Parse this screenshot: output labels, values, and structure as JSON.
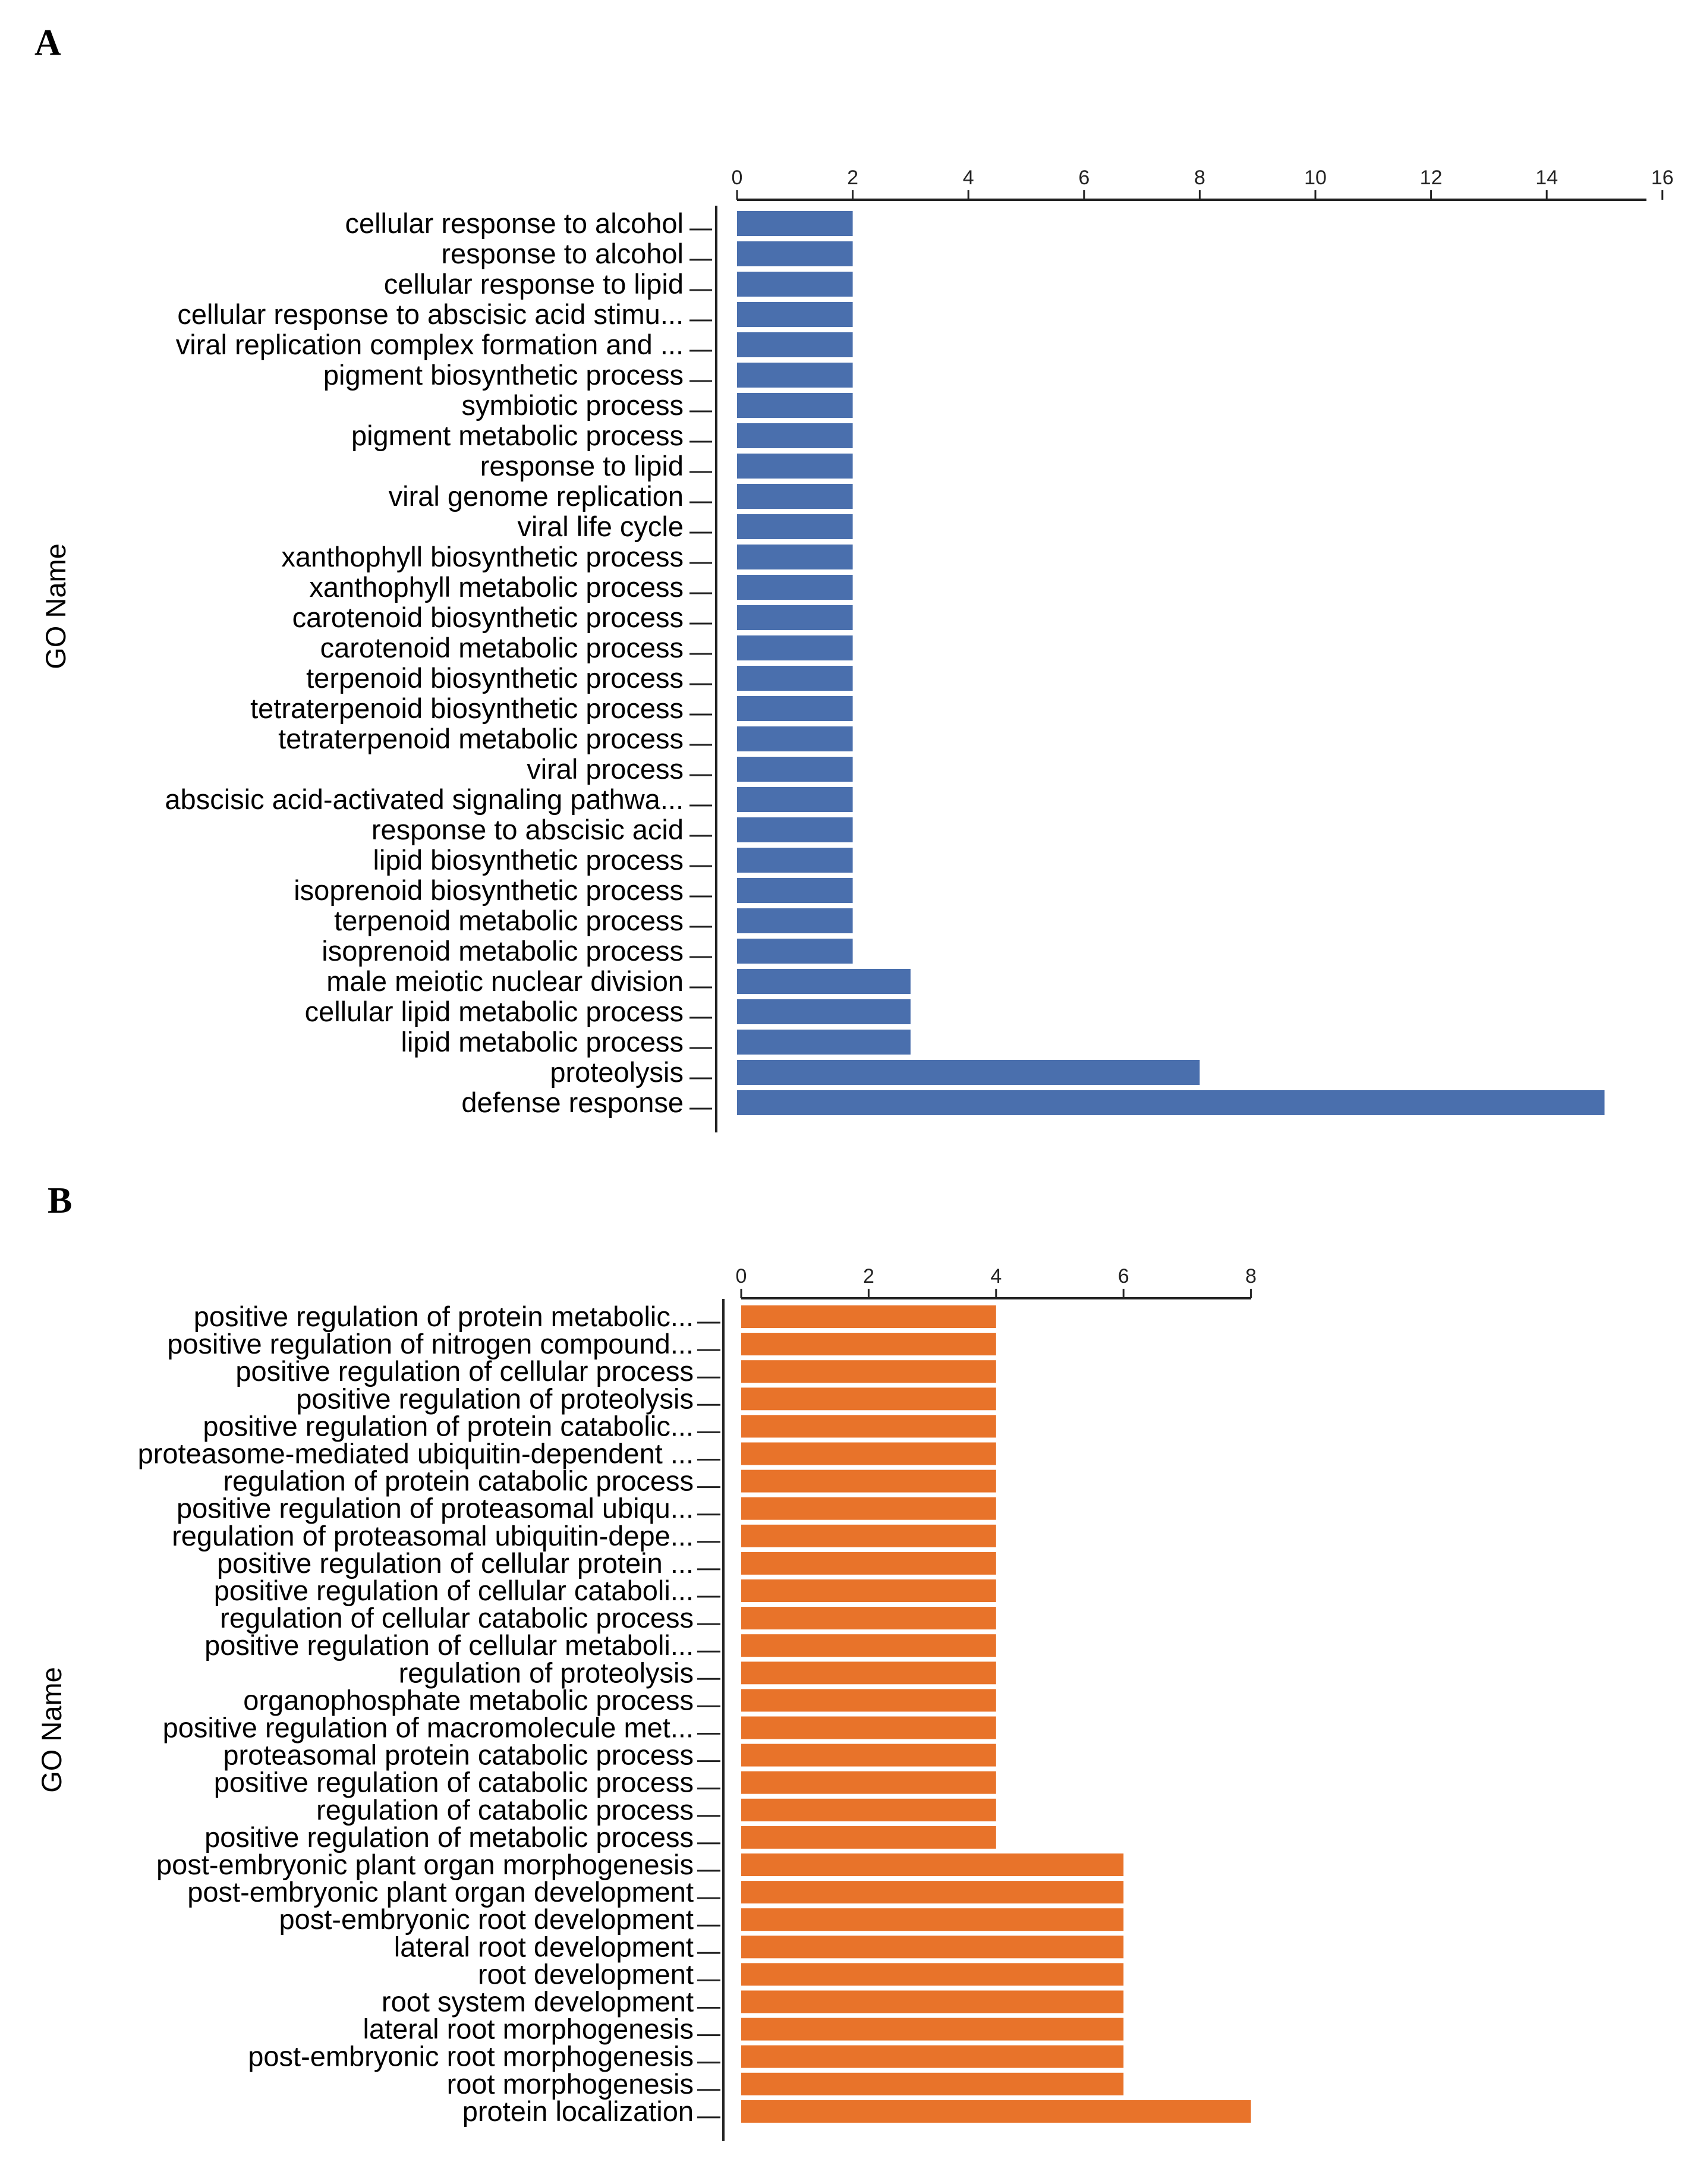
{
  "chart_data": [
    {
      "panel": "A",
      "type": "bar",
      "orientation": "horizontal",
      "ylabel": "GO Name",
      "xlim": [
        0,
        16
      ],
      "x_ticks": [
        0,
        2,
        4,
        6,
        8,
        10,
        12,
        14,
        16
      ],
      "color": "#4a6fad",
      "categories": [
        "cellular response to alcohol",
        "response to alcohol",
        "cellular response to lipid",
        "cellular response to abscisic acid stimu...",
        "viral replication complex formation and ...",
        "pigment biosynthetic process",
        "symbiotic process",
        "pigment metabolic process",
        "response to lipid",
        "viral genome replication",
        "viral life cycle",
        "xanthophyll biosynthetic process",
        "xanthophyll metabolic process",
        "carotenoid biosynthetic process",
        "carotenoid metabolic process",
        "terpenoid biosynthetic process",
        "tetraterpenoid biosynthetic process",
        "tetraterpenoid metabolic process",
        "viral process",
        "abscisic acid-activated signaling pathwa...",
        "response to abscisic acid",
        "lipid biosynthetic process",
        "isoprenoid biosynthetic process",
        "terpenoid metabolic process",
        "isoprenoid metabolic process",
        "male meiotic nuclear division",
        "cellular lipid metabolic process",
        "lipid metabolic process",
        "proteolysis",
        "defense response"
      ],
      "values": [
        2,
        2,
        2,
        2,
        2,
        2,
        2,
        2,
        2,
        2,
        2,
        2,
        2,
        2,
        2,
        2,
        2,
        2,
        2,
        2,
        2,
        2,
        2,
        2,
        2,
        3,
        3,
        3,
        8,
        15
      ]
    },
    {
      "panel": "B",
      "type": "bar",
      "orientation": "horizontal",
      "ylabel": "GO Name",
      "xlim": [
        0,
        8
      ],
      "x_ticks": [
        0,
        2,
        4,
        6,
        8
      ],
      "color": "#e8732a",
      "categories": [
        "positive regulation of protein metabolic...",
        "positive regulation of nitrogen compound...",
        "positive regulation of cellular process",
        "positive regulation of proteolysis",
        "positive regulation of protein catabolic...",
        "proteasome-mediated ubiquitin-dependent ...",
        "regulation of protein catabolic process",
        "positive regulation of proteasomal ubiqu...",
        "regulation of proteasomal ubiquitin-depe...",
        "positive regulation of cellular protein ...",
        "positive regulation of cellular cataboli...",
        "regulation of cellular catabolic process",
        "positive regulation of cellular metaboli...",
        "regulation of proteolysis",
        "organophosphate metabolic process",
        "positive regulation of macromolecule met...",
        "proteasomal protein catabolic process",
        "positive regulation of catabolic process",
        "regulation of catabolic process",
        "positive regulation of metabolic process",
        "post-embryonic plant organ morphogenesis",
        "post-embryonic plant organ development",
        "post-embryonic root development",
        "lateral root development",
        "root development",
        "root system development",
        "lateral root morphogenesis",
        "post-embryonic root morphogenesis",
        "root morphogenesis",
        "protein localization"
      ],
      "values": [
        4,
        4,
        4,
        4,
        4,
        4,
        4,
        4,
        4,
        4,
        4,
        4,
        4,
        4,
        4,
        4,
        4,
        4,
        4,
        4,
        6,
        6,
        6,
        6,
        6,
        6,
        6,
        6,
        6,
        8
      ]
    }
  ]
}
